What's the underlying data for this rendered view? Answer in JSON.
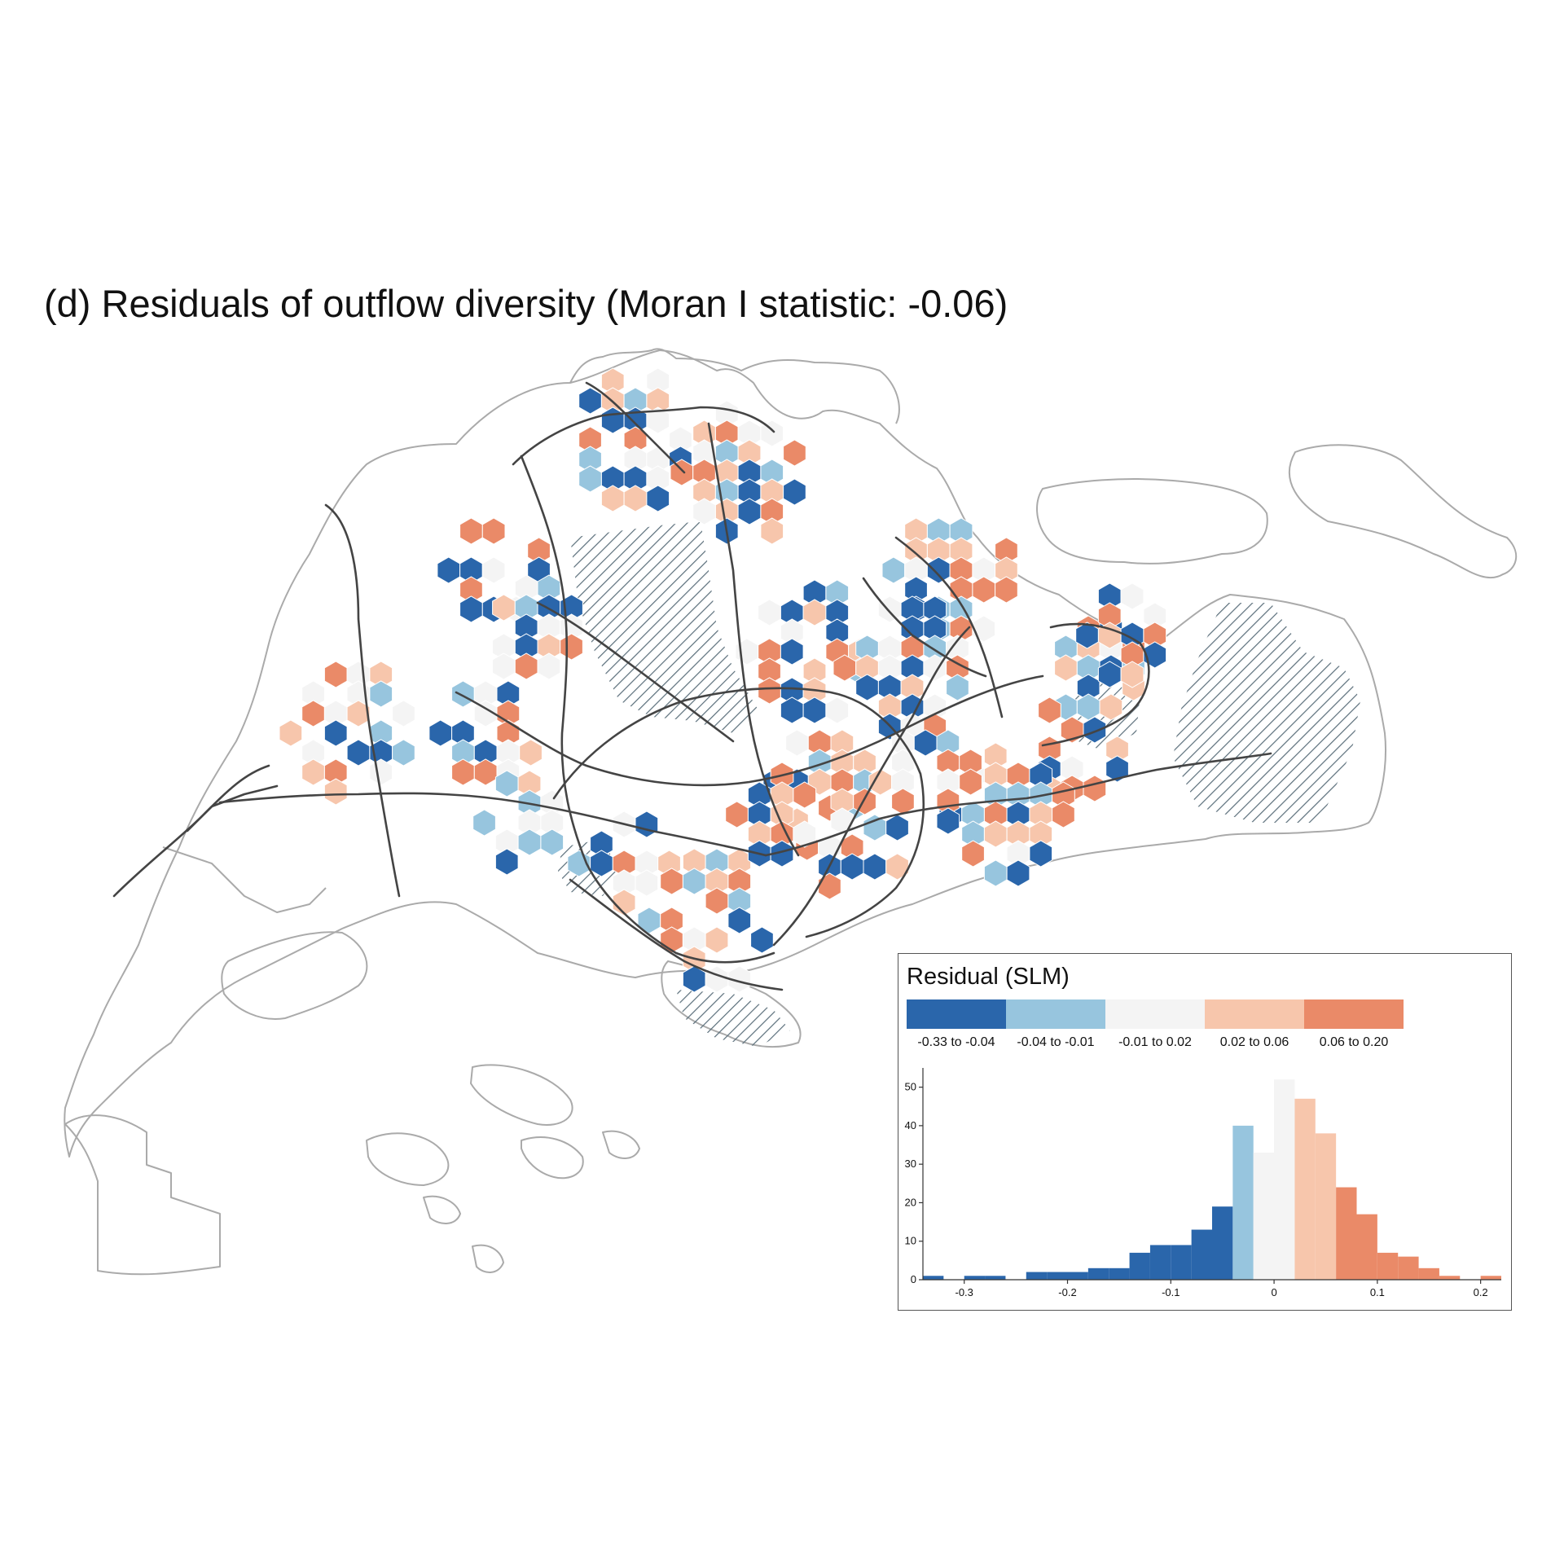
{
  "title": "(d) Residuals of outflow diversity (Moran I statistic: -0.06)",
  "legend": {
    "title": "Residual (SLM)",
    "classes": [
      {
        "label": "-0.33 to -0.04",
        "color": "#2a66ab"
      },
      {
        "label": "-0.04 to -0.01",
        "color": "#97c5de"
      },
      {
        "label": "-0.01 to 0.02",
        "color": "#f4f4f4"
      },
      {
        "label": "0.02 to 0.06",
        "color": "#f7c6ac"
      },
      {
        "label": "0.06 to 0.20",
        "color": "#ea8a68"
      }
    ]
  },
  "colors": {
    "coastline": "#aaaaaa",
    "rail": "#444444",
    "hatch": "#5a6e7a"
  },
  "chart_data": {
    "type": "histogram",
    "xlim": [
      -0.34,
      0.22
    ],
    "ylim": [
      0,
      55
    ],
    "xticks": [
      "-0.3",
      "-0.2",
      "-0.1",
      "0",
      "0.1",
      "0.2"
    ],
    "xtick_values": [
      -0.3,
      -0.2,
      -0.1,
      0,
      0.1,
      0.2
    ],
    "yticks": [
      "0",
      "10",
      "20",
      "30",
      "40",
      "50"
    ],
    "ytick_values": [
      0,
      10,
      20,
      30,
      40,
      50
    ],
    "bin_width": 0.02,
    "bins": [
      {
        "x0": -0.34,
        "count": 1
      },
      {
        "x0": -0.32,
        "count": 0
      },
      {
        "x0": -0.3,
        "count": 1
      },
      {
        "x0": -0.28,
        "count": 1
      },
      {
        "x0": -0.26,
        "count": 0
      },
      {
        "x0": -0.24,
        "count": 2
      },
      {
        "x0": -0.22,
        "count": 2
      },
      {
        "x0": -0.2,
        "count": 2
      },
      {
        "x0": -0.18,
        "count": 3
      },
      {
        "x0": -0.16,
        "count": 3
      },
      {
        "x0": -0.14,
        "count": 7
      },
      {
        "x0": -0.12,
        "count": 9
      },
      {
        "x0": -0.1,
        "count": 9
      },
      {
        "x0": -0.08,
        "count": 13
      },
      {
        "x0": -0.06,
        "count": 19
      },
      {
        "x0": -0.04,
        "count": 40
      },
      {
        "x0": -0.02,
        "count": 33
      },
      {
        "x0": 0.0,
        "count": 52
      },
      {
        "x0": 0.02,
        "count": 47
      },
      {
        "x0": 0.04,
        "count": 38
      },
      {
        "x0": 0.06,
        "count": 24
      },
      {
        "x0": 0.08,
        "count": 17
      },
      {
        "x0": 0.1,
        "count": 7
      },
      {
        "x0": 0.12,
        "count": 6
      },
      {
        "x0": 0.14,
        "count": 3
      },
      {
        "x0": 0.16,
        "count": 1
      },
      {
        "x0": 0.18,
        "count": 0
      },
      {
        "x0": 0.2,
        "count": 1
      }
    ]
  }
}
